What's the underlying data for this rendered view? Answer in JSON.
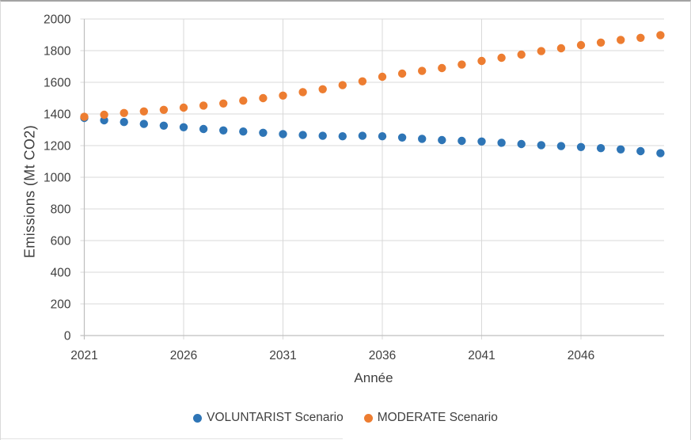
{
  "chart_data": {
    "type": "scatter",
    "title": "",
    "xlabel": "Année",
    "ylabel": "Emissions (Mt CO2)",
    "ylim": [
      0,
      2000
    ],
    "ytick_step": 200,
    "xticks": [
      2021,
      2026,
      2031,
      2036,
      2041,
      2046
    ],
    "grid": true,
    "legend_position": "bottom",
    "x": [
      2021,
      2022,
      2023,
      2024,
      2025,
      2026,
      2027,
      2028,
      2029,
      2030,
      2031,
      2032,
      2033,
      2034,
      2035,
      2036,
      2037,
      2038,
      2039,
      2040,
      2041,
      2042,
      2043,
      2044,
      2045,
      2046,
      2047,
      2048,
      2049,
      2050
    ],
    "series": [
      {
        "name": "VOLUNTARIST Scenario",
        "color": "#2E75B6",
        "values": [
          1375,
          1360,
          1349,
          1337,
          1326,
          1316,
          1305,
          1296,
          1289,
          1281,
          1273,
          1267,
          1262,
          1259,
          1262,
          1259,
          1251,
          1243,
          1235,
          1230,
          1226,
          1218,
          1210,
          1203,
          1197,
          1191,
          1184,
          1176,
          1165,
          1152
        ]
      },
      {
        "name": "MODERATE Scenario",
        "color": "#ED7D31",
        "values": [
          1382,
          1395,
          1406,
          1416,
          1426,
          1440,
          1453,
          1466,
          1484,
          1500,
          1516,
          1538,
          1556,
          1582,
          1606,
          1635,
          1655,
          1672,
          1690,
          1712,
          1735,
          1755,
          1775,
          1797,
          1815,
          1835,
          1851,
          1868,
          1881,
          1898
        ]
      }
    ],
    "colors": {
      "gridline": "#D9D9D9",
      "axis_line": "#BFBFBF",
      "tick_label": "#3f3f3f"
    }
  }
}
